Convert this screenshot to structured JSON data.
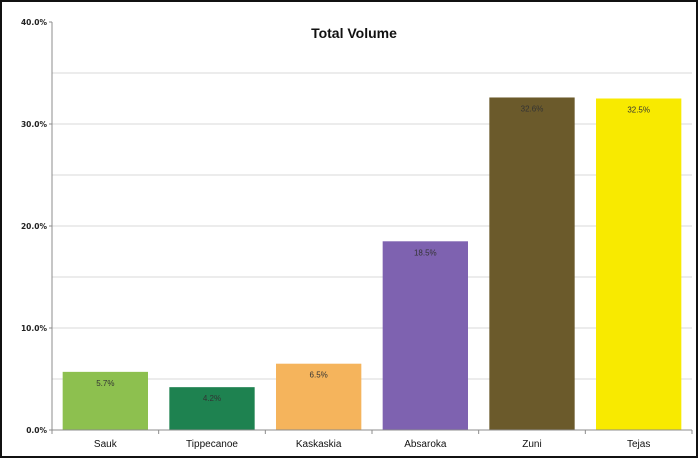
{
  "chart_data": {
    "type": "bar",
    "title": "Total Volume",
    "xlabel": "",
    "ylabel": "",
    "ylim": [
      0,
      40
    ],
    "yticks": [
      0,
      10,
      20,
      30,
      40
    ],
    "ytick_labels": [
      "0.0%",
      "10.0%",
      "20.0%",
      "30.0%",
      "40.0%"
    ],
    "categories": [
      "Sauk",
      "Tippecanoe",
      "Kaskaskia",
      "Absaroka",
      "Zuni",
      "Tejas"
    ],
    "values": [
      5.7,
      4.2,
      6.5,
      18.5,
      32.6,
      32.5
    ],
    "data_labels": [
      "5.7%",
      "4.2%",
      "6.5%",
      "18.5%",
      "32.6%",
      "32.5%"
    ],
    "colors": [
      "#8dc04f",
      "#1e8250",
      "#f5b45c",
      "#7e62b0",
      "#6b5a2b",
      "#f8ea00"
    ],
    "grid": true,
    "legend": "none"
  }
}
